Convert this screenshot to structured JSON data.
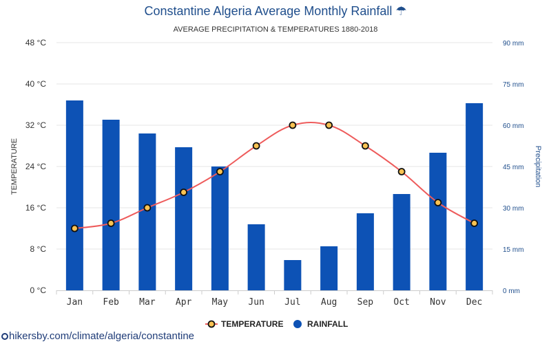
{
  "chart_data": {
    "type": "bar",
    "title": "Constantine Algeria Average Monthly Rainfall",
    "title_icon": "umbrella-rain-icon",
    "subtitle": "AVERAGE PRECIPITATION & TEMPERATURES 1880-2018",
    "categories": [
      "Jan",
      "Feb",
      "Mar",
      "Apr",
      "May",
      "Jun",
      "Jul",
      "Aug",
      "Sep",
      "Oct",
      "Nov",
      "Dec"
    ],
    "series": [
      {
        "name": "RAINFALL",
        "type": "bar",
        "axis": "right",
        "unit": "mm",
        "color": "#0d52b5",
        "values": [
          69,
          62,
          57,
          52,
          45,
          24,
          11,
          16,
          28,
          35,
          50,
          68
        ]
      },
      {
        "name": "TEMPERATURE",
        "type": "line",
        "axis": "left",
        "unit": "°C",
        "color": "#ee5b5b",
        "marker_fill": "#f9c252",
        "values": [
          12,
          13,
          16,
          19,
          23,
          28,
          32,
          32,
          28,
          23,
          17,
          13
        ]
      }
    ],
    "ylabel_left": "TEMPERATURE",
    "ylabel_right": "Precipitation",
    "ylim_left": [
      0,
      48
    ],
    "ylim_right": [
      0,
      90
    ],
    "yticks_left": [
      "0 °C",
      "8 °C",
      "16 °C",
      "24 °C",
      "32 °C",
      "40 °C",
      "48 °C"
    ],
    "yticks_right": [
      "0 mm",
      "15 mm",
      "30 mm",
      "45 mm",
      "60 mm",
      "75 mm",
      "90 mm"
    ],
    "grid": true,
    "legend_position": "bottom"
  },
  "footer": {
    "credit": "hikersby.com/climate/algeria/constantine"
  }
}
